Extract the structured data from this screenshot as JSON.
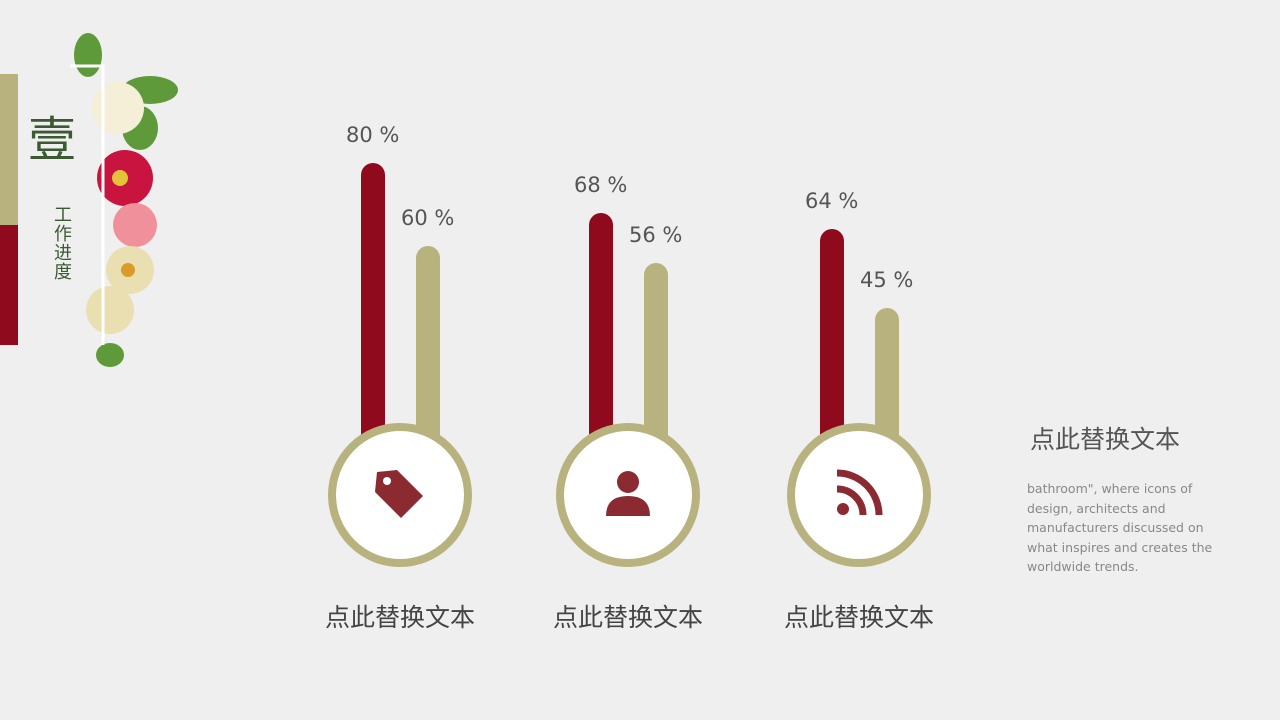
{
  "section": {
    "number": "壹",
    "title": "工作进度"
  },
  "colors": {
    "primary": "#8f0a1c",
    "secondary": "#b8b27e",
    "icon": "#8b2a30"
  },
  "chart_data": {
    "type": "bar",
    "categories": [
      "点此替换文本",
      "点此替换文本",
      "点此替换文本"
    ],
    "series": [
      {
        "values": [
          80,
          68,
          64
        ]
      },
      {
        "values": [
          60,
          56,
          45
        ]
      }
    ],
    "value_labels": [
      [
        "80 %",
        "68 %",
        "64 %"
      ],
      [
        "60 %",
        "56 %",
        "45 %"
      ]
    ],
    "icons": [
      "tag-icon",
      "user-icon",
      "rss-icon"
    ],
    "ylim": [
      0,
      100
    ]
  },
  "side": {
    "title": "点此替换文本",
    "body": "bathroom\",  where icons of design, architects and manufacturers discussed on what inspires and creates the worldwide  trends."
  }
}
